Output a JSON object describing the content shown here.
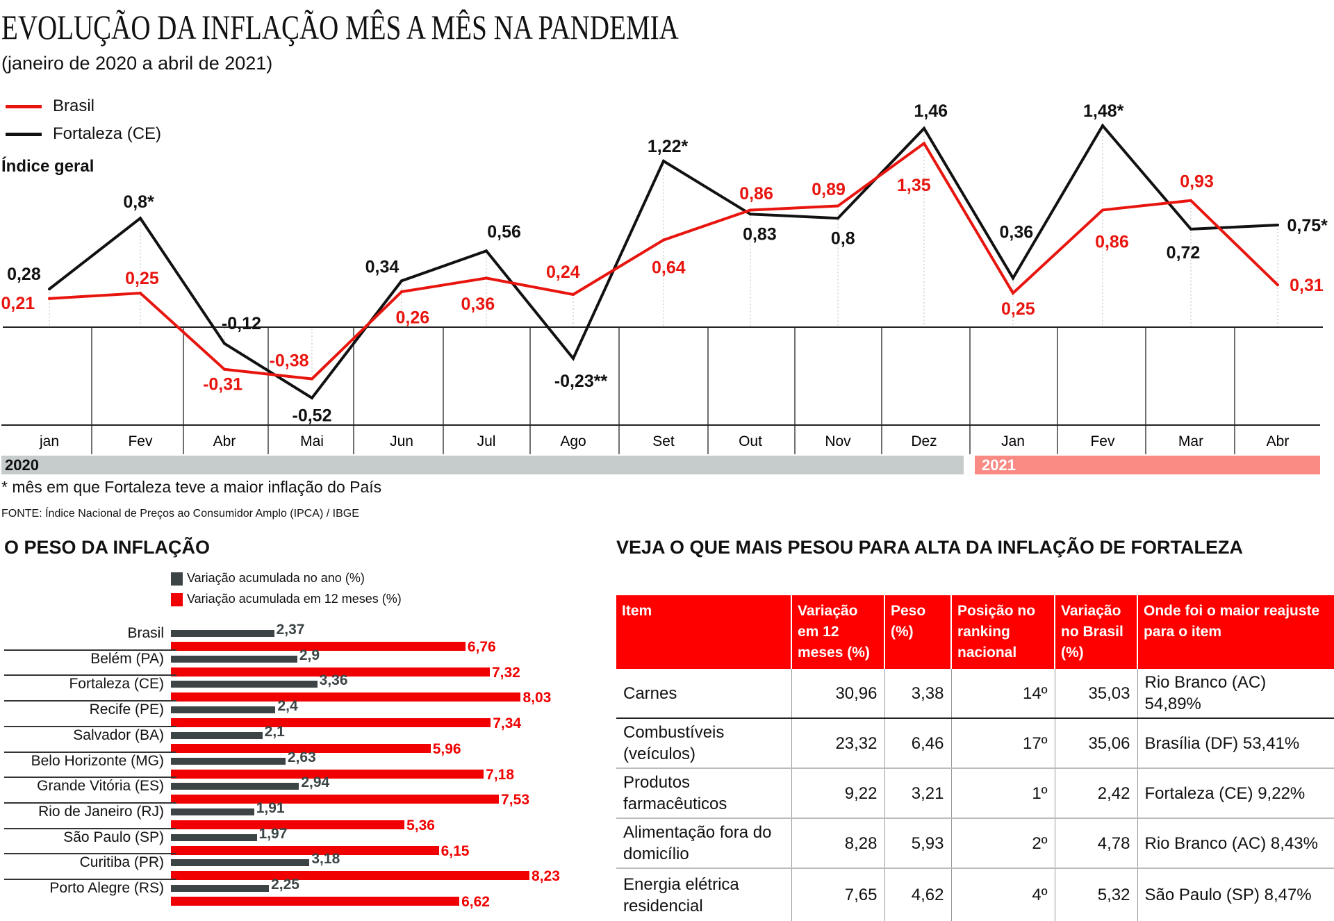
{
  "title": "EVOLUÇÃO DA INFLAÇÃO MÊS A MÊS NA PANDEMIA",
  "subtitle": "(janeiro de 2020 a abril de 2021)",
  "footnote": "* mês em que Fortaleza teve a maior inflação do País",
  "source": "FONTE:  Índice Nacional de Preços ao Consumidor Amplo (IPCA) / IBGE",
  "colors": {
    "brasil": "#e8150f",
    "fortaleza": "#111111",
    "bar_year": "#3c4446",
    "bar_12m": "#f00000"
  },
  "chart_data": [
    {
      "type": "line",
      "title": "EVOLUÇÃO DA INFLAÇÃO MÊS A MÊS NA PANDEMIA",
      "ylabel": "Índice geral",
      "categories": [
        "jan",
        "Fev",
        "Abr",
        "Mai",
        "Jun",
        "Jul",
        "Ago",
        "Set",
        "Out",
        "Nov",
        "Dez",
        "Jan",
        "Fev",
        "Mar",
        "Abr"
      ],
      "years": [
        "2020",
        "2021"
      ],
      "series": [
        {
          "name": "Brasil",
          "values": [
            0.21,
            0.25,
            -0.31,
            -0.38,
            0.26,
            0.36,
            0.24,
            0.64,
            0.86,
            0.89,
            1.35,
            0.25,
            0.86,
            0.93,
            0.31
          ],
          "labels": [
            "0,21",
            "0,25",
            "-0,31",
            "-0,38",
            "0,26",
            "0,36",
            "0,24",
            "0,64",
            "0,86",
            "0,89",
            "1,35",
            "0,25",
            "0,86",
            "0,93",
            "0,31"
          ]
        },
        {
          "name": "Fortaleza (CE)",
          "values": [
            0.28,
            0.8,
            -0.12,
            -0.52,
            0.34,
            0.56,
            -0.23,
            1.22,
            0.83,
            0.8,
            1.46,
            0.36,
            1.48,
            0.72,
            0.75
          ],
          "labels": [
            "0,28",
            "0,8*",
            "-0,12",
            "-0,52",
            "0,34",
            "0,56",
            "-0,23**",
            "1,22*",
            "0,83",
            "0,8",
            "1,46",
            "0,36",
            "1,48*",
            "0,72",
            "0,75*"
          ]
        }
      ],
      "legend": "top-left"
    },
    {
      "type": "bar",
      "title": "O PESO DA INFLAÇÃO",
      "categories": [
        "Brasil",
        "Belém (PA)",
        "Fortaleza (CE)",
        "Recife (PE)",
        "Salvador (BA)",
        "Belo Horizonte (MG)",
        "Grande Vitória (ES)",
        "Rio de Janeiro (RJ)",
        "São Paulo (SP)",
        "Curitiba (PR)",
        "Porto Alegre (RS)"
      ],
      "series": [
        {
          "name": "Variação acumulada no ano (%)",
          "values": [
            2.37,
            2.9,
            3.36,
            2.4,
            2.1,
            2.63,
            2.94,
            1.91,
            1.97,
            3.18,
            2.25
          ],
          "labels": [
            "2,37",
            "2,9",
            "3,36",
            "2,4",
            "2,1",
            "2,63",
            "2,94",
            "1,91",
            "1,97",
            "3,18",
            "2,25"
          ]
        },
        {
          "name": "Variação acumulada em 12 meses (%)",
          "values": [
            6.76,
            7.32,
            8.03,
            7.34,
            5.96,
            7.18,
            7.53,
            5.36,
            6.15,
            8.23,
            6.62
          ],
          "labels": [
            "6,76",
            "7,32",
            "8,03",
            "7,34",
            "5,96",
            "7,18",
            "7,53",
            "5,36",
            "6,15",
            "8,23",
            "6,62"
          ]
        }
      ]
    }
  ],
  "table": {
    "title": "VEJA O QUE MAIS PESOU PARA ALTA DA INFLAÇÃO DE FORTALEZA",
    "headers": [
      "Item",
      "Variação em 12 meses (%)",
      "Peso (%)",
      "Posição no ranking nacional",
      "Variação no Brasil (%)",
      "Onde foi o maior reajuste para o item"
    ],
    "rows": [
      [
        "Carnes",
        "30,96",
        "3,38",
        "14º",
        "35,03",
        "Rio Branco (AC) 54,89%"
      ],
      [
        "Combustíveis (veículos)",
        "23,32",
        "6,46",
        "17º",
        "35,06",
        "Brasília (DF) 53,41%"
      ],
      [
        "Produtos farmacêuticos",
        "9,22",
        "3,21",
        "1º",
        "2,42",
        "Fortaleza (CE) 9,22%"
      ],
      [
        "Alimentação fora do domicílio",
        "8,28",
        "5,93",
        "2º",
        "4,78",
        "Rio Branco (AC) 8,43%"
      ],
      [
        "Energia elétrica residencial",
        "7,65",
        "4,62",
        "4º",
        "5,32",
        "São Paulo (SP) 8,47%"
      ]
    ]
  }
}
